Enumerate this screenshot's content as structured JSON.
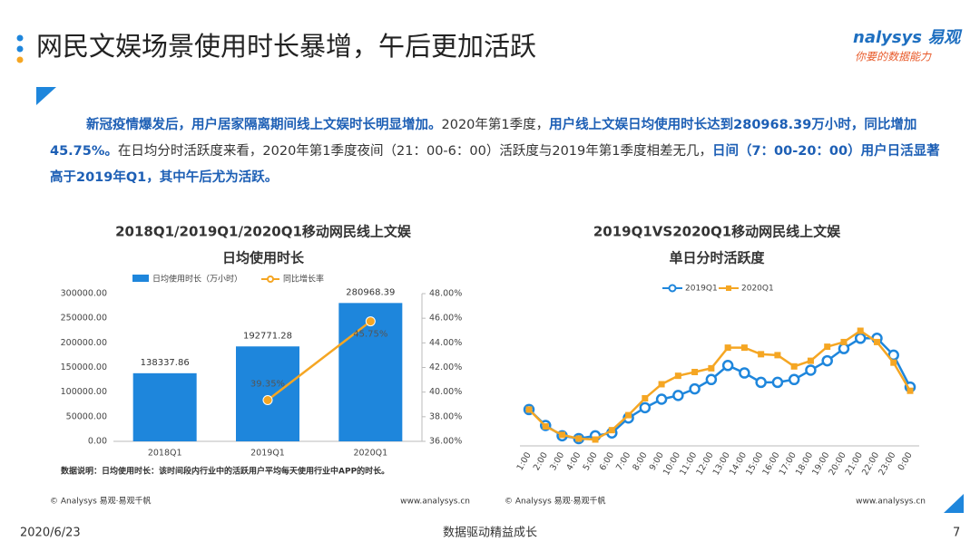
{
  "slide": {
    "title": "网民文娱场景使用时长暴增，午后更加活跃",
    "logo": "nalysys 易观",
    "logo_tagline": "你要的数据能力",
    "paragraph": [
      {
        "text": "新冠疫情爆发后，用户居家隔离期间线上文娱时长明显增加。",
        "highlight": true
      },
      {
        "text": "2020年第1季度，",
        "highlight": false
      },
      {
        "text": "用户线上文娱日均使用时长达到280968.39万小时，同比增加45.75%。",
        "highlight": true
      },
      {
        "text": "在日均分时活跃度来看，2020年第1季度夜间（21：00-6：00）活跃度与2019年第1季度相差无几，",
        "highlight": false
      },
      {
        "text": "日间（7：00-20：00）用户日活显著高于2019年Q1，其中午后尤为活跃。",
        "highlight": true
      }
    ],
    "date": "2020/6/23",
    "slogan": "数据驱动精益成长",
    "page": "7"
  },
  "chart_data": [
    {
      "type": "bar_line",
      "title": "2018Q1/2019Q1/2020Q1移动网民线上文娱",
      "subtitle": "日均使用时长",
      "categories": [
        "2018Q1",
        "2019Q1",
        "2020Q1"
      ],
      "series": [
        {
          "name": "日均使用时长（万小时）",
          "color": "#1e86dc",
          "values": [
            138337.86,
            192771.28,
            280968.39
          ]
        },
        {
          "name": "同比增长率",
          "color": "#f5a623",
          "axis": "y2",
          "values": [
            null,
            39.35,
            45.75
          ],
          "value_labels": [
            null,
            "39.35%",
            "45.75%"
          ]
        }
      ],
      "ylim": [
        0,
        300000
      ],
      "yticks": [
        {
          "value": 0,
          "label": "0.00"
        },
        {
          "value": 50000,
          "label": "50000.00"
        },
        {
          "value": 100000,
          "label": "100000.00"
        },
        {
          "value": 150000,
          "label": "150000.00"
        },
        {
          "value": 200000,
          "label": "200000.00"
        },
        {
          "value": 250000,
          "label": "250000.00"
        },
        {
          "value": 300000,
          "label": "300000.00"
        }
      ],
      "y2lim": [
        36,
        48
      ],
      "y2ticks": [
        {
          "value": 36,
          "label": "36.00%"
        },
        {
          "value": 38,
          "label": "38.00%"
        },
        {
          "value": 40,
          "label": "40.00%"
        },
        {
          "value": 42,
          "label": "42.00%"
        },
        {
          "value": 44,
          "label": "44.00%"
        },
        {
          "value": 46,
          "label": "46.00%"
        },
        {
          "value": 48,
          "label": "48.00%"
        }
      ],
      "note": "数据说明：日均使用时长：该时间段内行业中的活跃用户平均每天使用行业中APP的时长。",
      "source": "© Analysys 易观·易观千帆",
      "url": "www.analysys.cn"
    },
    {
      "type": "line",
      "title": "2019Q1VS2020Q1移动网民线上文娱",
      "subtitle": "单日分时活跃度",
      "categories": [
        "1:00",
        "2:00",
        "3:00",
        "4:00",
        "5:00",
        "6:00",
        "7:00",
        "8:00",
        "9:00",
        "10:00",
        "11:00",
        "12:00",
        "13:00",
        "14:00",
        "15:00",
        "16:00",
        "17:00",
        "18:00",
        "19:00",
        "20:00",
        "21:00",
        "22:00",
        "23:00",
        "0:00"
      ],
      "series": [
        {
          "name": "2019Q1",
          "color": "#1e86dc",
          "marker": "circle",
          "values": [
            48,
            31,
            20,
            17,
            20,
            23,
            39,
            50,
            59,
            63,
            70,
            80,
            95,
            87,
            77,
            77,
            80,
            90,
            100,
            113,
            124,
            124,
            106,
            72
          ]
        },
        {
          "name": "2020Q1",
          "color": "#f5a623",
          "marker": "square",
          "values": [
            48,
            30,
            21,
            17,
            16,
            26,
            42,
            60,
            75,
            84,
            88,
            92,
            114,
            114,
            107,
            106,
            94,
            100,
            115,
            120,
            132,
            120,
            98,
            68
          ]
        }
      ],
      "source": "© Analysys 易观·易观千帆",
      "url": "www.analysys.cn"
    }
  ]
}
